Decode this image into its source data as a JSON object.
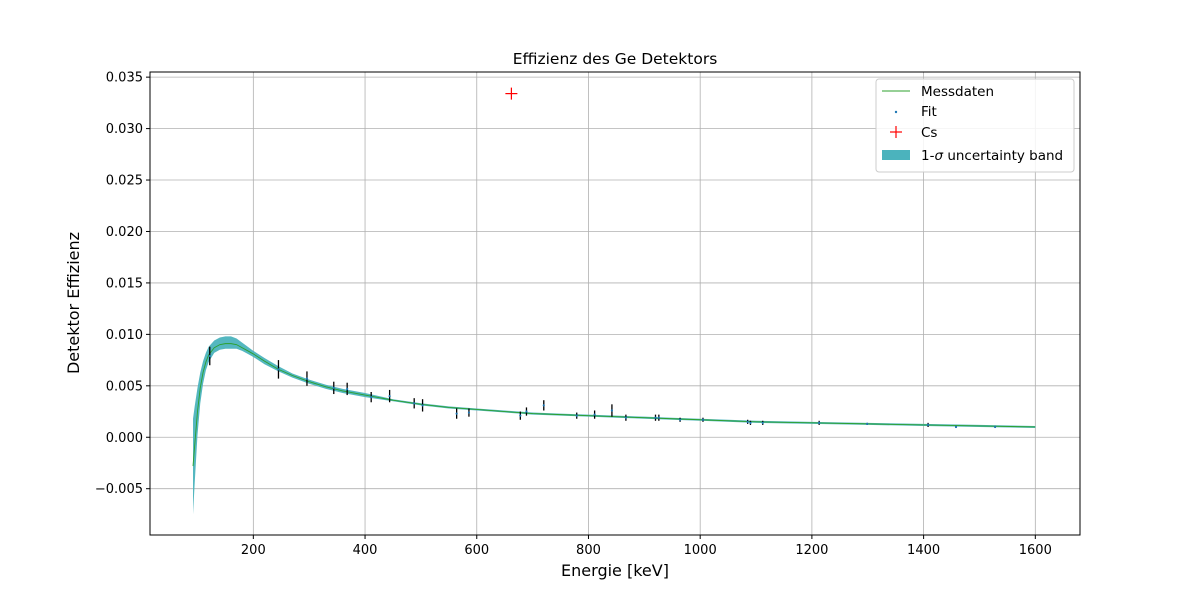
{
  "chart_data": {
    "type": "scatter",
    "title": "Effizienz des Ge Detektors",
    "xlabel": "Energie [keV]",
    "ylabel": "Detektor Effizienz",
    "xlim": [
      15,
      1680
    ],
    "ylim": [
      -0.0095,
      0.0355
    ],
    "xticks": [
      200,
      400,
      600,
      800,
      1000,
      1200,
      1400,
      1600
    ],
    "yticks": [
      -0.005,
      0.0,
      0.005,
      0.01,
      0.015,
      0.02,
      0.025,
      0.03,
      0.035
    ],
    "xtick_labels": [
      "200",
      "400",
      "600",
      "800",
      "1000",
      "1200",
      "1400",
      "1600"
    ],
    "ytick_labels": [
      "−0.005",
      "0.000",
      "0.005",
      "0.010",
      "0.015",
      "0.020",
      "0.025",
      "0.030",
      "0.035"
    ],
    "grid": true,
    "legend_position": "upper-right",
    "series": [
      {
        "name": "Messdaten",
        "kind": "line",
        "color": "#2ca02c",
        "x": [
          92,
          95,
          100,
          105,
          110,
          115,
          120,
          130,
          140,
          150,
          160,
          170,
          180,
          190,
          200,
          220,
          245,
          270,
          300,
          330,
          360,
          400,
          450,
          500,
          550,
          600,
          650,
          700,
          750,
          800,
          850,
          900,
          950,
          1000,
          1100,
          1200,
          1300,
          1400,
          1500,
          1600
        ],
        "y": [
          -0.0028,
          -0.0008,
          0.0025,
          0.0048,
          0.0063,
          0.0073,
          0.008,
          0.0087,
          0.009,
          0.0091,
          0.0091,
          0.009,
          0.0087,
          0.0084,
          0.0081,
          0.0074,
          0.0066,
          0.006,
          0.0054,
          0.0049,
          0.0045,
          0.0041,
          0.0036,
          0.0032,
          0.0029,
          0.0027,
          0.0025,
          0.0023,
          0.0022,
          0.0021,
          0.002,
          0.0019,
          0.0018,
          0.0017,
          0.0015,
          0.0014,
          0.0013,
          0.0012,
          0.0011,
          0.001
        ]
      },
      {
        "name": "Fit",
        "kind": "errorbar",
        "color": "#1f77b4",
        "x": [
          122,
          245,
          296,
          344,
          368,
          411,
          444,
          488,
          503,
          564,
          586,
          678,
          689,
          720,
          779,
          811,
          842,
          867,
          920,
          926,
          964,
          1005,
          1085,
          1090,
          1112,
          1213,
          1299,
          1408,
          1458,
          1528
        ],
        "y": [
          0.0079,
          0.0066,
          0.0057,
          0.0048,
          0.0047,
          0.0039,
          0.004,
          0.0033,
          0.0031,
          0.0023,
          0.0024,
          0.0021,
          0.0025,
          0.0031,
          0.0021,
          0.0022,
          0.0026,
          0.0019,
          0.0019,
          0.0019,
          0.0017,
          0.0017,
          0.0015,
          0.0014,
          0.0014,
          0.0014,
          0.0013,
          0.0012,
          0.001,
          0.001
        ],
        "yerr": [
          0.0009,
          0.0009,
          0.0007,
          0.0006,
          0.0006,
          0.0005,
          0.0006,
          0.0005,
          0.0006,
          0.0005,
          0.0004,
          0.0004,
          0.0004,
          0.0005,
          0.0003,
          0.0004,
          0.0006,
          0.0003,
          0.0003,
          0.0003,
          0.0002,
          0.0002,
          0.0002,
          0.0002,
          0.0002,
          0.0002,
          0.0001,
          0.0002,
          0.0001,
          0.0001
        ]
      },
      {
        "name": "Cs",
        "kind": "marker",
        "marker": "+",
        "color": "#ff0000",
        "x": [
          662
        ],
        "y": [
          0.0334
        ]
      },
      {
        "name": "1-σ uncertainty band",
        "kind": "band",
        "color": "#4bb3bd",
        "x": [
          92,
          95,
          100,
          105,
          110,
          115,
          120,
          130,
          140,
          150,
          160,
          170,
          180,
          190,
          200,
          220,
          245,
          270,
          300,
          330,
          360,
          400,
          450,
          500,
          550,
          600,
          650,
          700,
          750,
          800,
          850,
          900,
          950,
          1000,
          1100,
          1200,
          1300,
          1400,
          1500,
          1600
        ],
        "lower": [
          -0.0075,
          -0.0045,
          0.0002,
          0.0033,
          0.0052,
          0.0065,
          0.0073,
          0.0082,
          0.0085,
          0.0086,
          0.0086,
          0.0086,
          0.0084,
          0.0081,
          0.0078,
          0.0071,
          0.0064,
          0.0058,
          0.0052,
          0.0047,
          0.0043,
          0.0039,
          0.0035,
          0.0031,
          0.0028,
          0.0026,
          0.0024,
          0.0022,
          0.0021,
          0.002,
          0.0019,
          0.0018,
          0.0017,
          0.0016,
          0.0014,
          0.0013,
          0.0012,
          0.0011,
          0.001,
          0.0009
        ],
        "upper": [
          0.0018,
          0.003,
          0.0048,
          0.0063,
          0.0074,
          0.0082,
          0.0088,
          0.0094,
          0.0097,
          0.0098,
          0.0098,
          0.0096,
          0.0092,
          0.0088,
          0.0084,
          0.0077,
          0.0069,
          0.0062,
          0.0056,
          0.0051,
          0.0047,
          0.0043,
          0.0037,
          0.0033,
          0.003,
          0.0028,
          0.0026,
          0.0024,
          0.0023,
          0.0022,
          0.0021,
          0.002,
          0.0019,
          0.0018,
          0.0016,
          0.0015,
          0.0014,
          0.0013,
          0.0012,
          0.0011
        ]
      }
    ],
    "legend_order": [
      "Messdaten",
      "Fit",
      "Cs",
      "1-σ uncertainty band"
    ]
  }
}
